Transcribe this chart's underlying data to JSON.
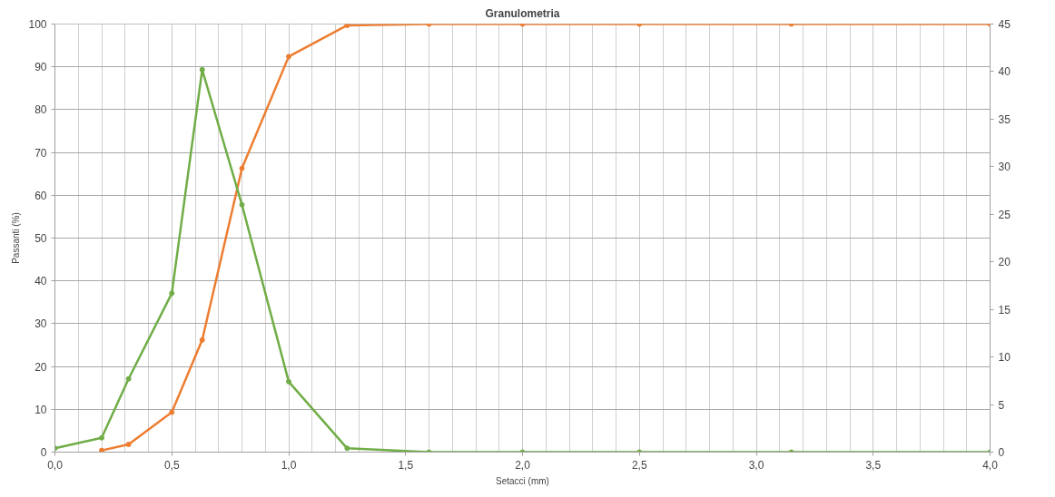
{
  "chart_data": {
    "type": "line",
    "title": "Granulometria",
    "xlabel": "Setacci (mm)",
    "ylabel": "Passanti (%)",
    "x": [
      0,
      0.2,
      0.315,
      0.5,
      0.63,
      0.8,
      1.0,
      1.25,
      1.6,
      2.0,
      2.5,
      3.15,
      4.0
    ],
    "series": [
      {
        "color": "#ed7d31",
        "x": [
          0.2,
          0.315,
          0.5,
          0.63,
          0.8,
          1.0,
          1.25,
          1.6,
          2.0,
          2.5,
          3.15,
          4.0
        ],
        "values": [
          0.4,
          1.8,
          9.3,
          26.2,
          66.3,
          92.4,
          99.7,
          100,
          100,
          100,
          100,
          100
        ]
      },
      {
        "color": "#70ad47",
        "axis": "y2",
        "values": [
          0.4,
          1.5,
          7.7,
          16.7,
          40.2,
          26.0,
          7.4,
          0.4,
          0,
          0,
          0,
          0,
          0
        ]
      }
    ],
    "marker": "circle",
    "line_style": "solid",
    "grid": true,
    "xlim": [
      0,
      4.0
    ],
    "xticks": [
      {
        "value": 0,
        "label": "0,0"
      },
      {
        "value": 0.5,
        "label": "0,5"
      },
      {
        "value": 1.0,
        "label": "1,0"
      },
      {
        "value": 1.5,
        "label": "1,5"
      },
      {
        "value": 2.0,
        "label": "2,0"
      },
      {
        "value": 2.5,
        "label": "2,5"
      },
      {
        "value": 3.0,
        "label": "3,0"
      },
      {
        "value": 3.5,
        "label": "3,5"
      },
      {
        "value": 4.0,
        "label": "4,0"
      }
    ],
    "ylim": [
      0,
      100
    ],
    "yticks": [
      0,
      10,
      20,
      30,
      40,
      50,
      60,
      70,
      80,
      90,
      100
    ],
    "y2lim": [
      0,
      45
    ],
    "y2ticks": [
      0,
      5,
      10,
      15,
      20,
      25,
      30,
      35,
      40,
      45
    ]
  }
}
